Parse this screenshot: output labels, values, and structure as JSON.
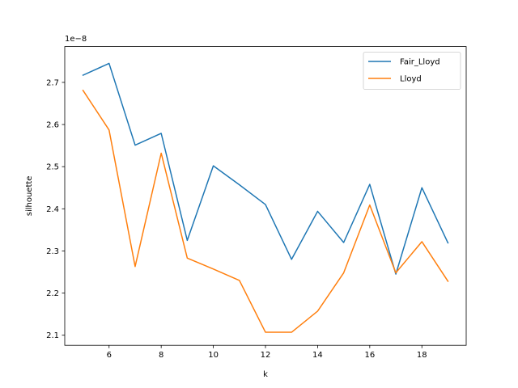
{
  "chart_data": {
    "type": "line",
    "title": "",
    "xlabel": "k",
    "ylabel": "silhouette",
    "offset_text": "1e−8",
    "y_multiplier": 1e-08,
    "xlim": [
      4.3,
      19.7
    ],
    "ylim": [
      2.076,
      2.785
    ],
    "xticks": [
      6,
      8,
      10,
      12,
      14,
      16,
      18
    ],
    "yticks": [
      2.1,
      2.2,
      2.3,
      2.4,
      2.5,
      2.6,
      2.7
    ],
    "grid": false,
    "legend_position": "top-right",
    "x": [
      5,
      6,
      7,
      8,
      9,
      10,
      11,
      12,
      13,
      14,
      15,
      16,
      17,
      18,
      19
    ],
    "series": [
      {
        "name": "Fair_Lloyd",
        "color": "#1f77b4",
        "values": [
          2.717,
          2.745,
          2.551,
          2.579,
          2.325,
          2.502,
          2.457,
          2.41,
          2.28,
          2.394,
          2.32,
          2.458,
          2.245,
          2.45,
          2.319
        ]
      },
      {
        "name": "Lloyd",
        "color": "#ff7f0e",
        "values": [
          2.681,
          2.587,
          2.263,
          2.532,
          2.283,
          2.257,
          2.23,
          2.107,
          2.107,
          2.157,
          2.248,
          2.409,
          2.248,
          2.322,
          2.228
        ]
      }
    ]
  }
}
